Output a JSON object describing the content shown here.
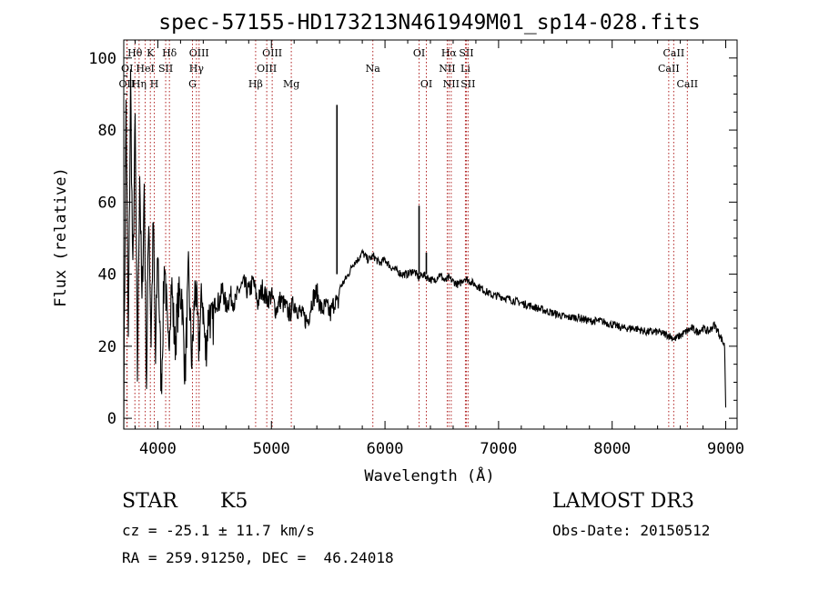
{
  "chart_data": {
    "type": "line",
    "title": "spec-57155-HD173213N461949M01_sp14-028.fits",
    "xlabel": "Wavelength (Å)",
    "ylabel": "Flux (relative)",
    "xlim": [
      3700,
      9100
    ],
    "ylim": [
      -3,
      105
    ],
    "xticks": [
      4000,
      5000,
      6000,
      7000,
      8000,
      9000
    ],
    "yticks": [
      0,
      20,
      40,
      60,
      80,
      100
    ],
    "grid": false,
    "series": [
      {
        "name": "flux",
        "color": "#000000",
        "x": [
          3700,
          3720,
          3740,
          3760,
          3780,
          3800,
          3820,
          3840,
          3860,
          3880,
          3900,
          3920,
          3940,
          3960,
          3980,
          4000,
          4030,
          4060,
          4090,
          4120,
          4150,
          4180,
          4210,
          4240,
          4270,
          4300,
          4330,
          4360,
          4390,
          4420,
          4450,
          4480,
          4510,
          4540,
          4570,
          4600,
          4640,
          4680,
          4720,
          4760,
          4800,
          4840,
          4880,
          4920,
          4960,
          5000,
          5040,
          5080,
          5120,
          5160,
          5200,
          5240,
          5280,
          5320,
          5360,
          5400,
          5440,
          5480,
          5520,
          5560,
          5585,
          5600,
          5640,
          5680,
          5720,
          5760,
          5800,
          5850,
          5900,
          5950,
          6000,
          6050,
          6100,
          6150,
          6200,
          6250,
          6300,
          6330,
          6380,
          6430,
          6480,
          6530,
          6560,
          6600,
          6650,
          6700,
          6750,
          6800,
          6850,
          6900,
          6950,
          7000,
          7100,
          7200,
          7300,
          7400,
          7500,
          7600,
          7700,
          7800,
          7900,
          8000,
          8100,
          8200,
          8300,
          8400,
          8500,
          8550,
          8600,
          8650,
          8700,
          8750,
          8800,
          8850,
          8900,
          8950,
          8990,
          9000
        ],
        "y": [
          3,
          88,
          20,
          94,
          38,
          82,
          12,
          70,
          30,
          65,
          10,
          58,
          22,
          55,
          15,
          48,
          8,
          45,
          18,
          38,
          20,
          32,
          35,
          12,
          40,
          15,
          38,
          20,
          35,
          18,
          30,
          25,
          33,
          32,
          36,
          31,
          34,
          32,
          36,
          37,
          35,
          38,
          32,
          36,
          33,
          34,
          30,
          33,
          31,
          29,
          32,
          30,
          28,
          27,
          33,
          35,
          30,
          31,
          29,
          33,
          31,
          36,
          38,
          40,
          43,
          44,
          46,
          44,
          45,
          43,
          44,
          42,
          41,
          40,
          40,
          41,
          39,
          40,
          39,
          38,
          40,
          38,
          39,
          38,
          37,
          39,
          38,
          37,
          36,
          35,
          34,
          34,
          33,
          32,
          31,
          30,
          29,
          28,
          28,
          27,
          27,
          26,
          25,
          25,
          24,
          24,
          23,
          22,
          23,
          24,
          25,
          24,
          25,
          24,
          26,
          23,
          20,
          3
        ]
      }
    ],
    "spikes": [
      {
        "x": 5577,
        "y": 87
      },
      {
        "x": 6300,
        "y": 59
      },
      {
        "x": 6364,
        "y": 46
      }
    ],
    "line_markers": [
      {
        "label": "Hθ",
        "x": 3798,
        "row": 1
      },
      {
        "label": "OII",
        "x": 3727,
        "row": 3
      },
      {
        "label": "OI",
        "x": 3730,
        "row": 2
      },
      {
        "label": "K",
        "x": 3934,
        "row": 1
      },
      {
        "label": "H",
        "x": 3969,
        "row": 3
      },
      {
        "label": "HeI",
        "x": 3889,
        "row": 2
      },
      {
        "label": "Hη",
        "x": 3835,
        "row": 3
      },
      {
        "label": "SII",
        "x": 4069,
        "row": 2
      },
      {
        "label": "Hδ",
        "x": 4102,
        "row": 1
      },
      {
        "label": "OIII",
        "x": 4363,
        "row": 1
      },
      {
        "label": "Hγ",
        "x": 4340,
        "row": 2
      },
      {
        "label": "G",
        "x": 4305,
        "row": 3
      },
      {
        "label": "Hβ",
        "x": 4861,
        "row": 3
      },
      {
        "label": "OIII",
        "x": 5007,
        "row": 1
      },
      {
        "label": "OIII",
        "x": 4959,
        "row": 2
      },
      {
        "label": "Mg",
        "x": 5175,
        "row": 3
      },
      {
        "label": "Na",
        "x": 5893,
        "row": 2
      },
      {
        "label": "OI",
        "x": 6300,
        "row": 1
      },
      {
        "label": "OI",
        "x": 6364,
        "row": 3
      },
      {
        "label": "Hα",
        "x": 6563,
        "row": 1
      },
      {
        "label": "NII",
        "x": 6548,
        "row": 2
      },
      {
        "label": "NII",
        "x": 6583,
        "row": 3
      },
      {
        "label": "SII",
        "x": 6716,
        "row": 1
      },
      {
        "label": "Li",
        "x": 6708,
        "row": 2
      },
      {
        "label": "SII",
        "x": 6731,
        "row": 3
      },
      {
        "label": "CaII",
        "x": 8542,
        "row": 1
      },
      {
        "label": "CaII",
        "x": 8498,
        "row": 2
      },
      {
        "label": "CaII",
        "x": 8662,
        "row": 3
      }
    ]
  },
  "info": {
    "class": "STAR",
    "subclass": "K5",
    "survey": "LAMOST DR3",
    "cz": "cz = -25.1 ± 11.7 km/s",
    "obs_date": "Obs-Date: 20150512",
    "coords": "RA = 259.91250, DEC =  46.24018"
  }
}
